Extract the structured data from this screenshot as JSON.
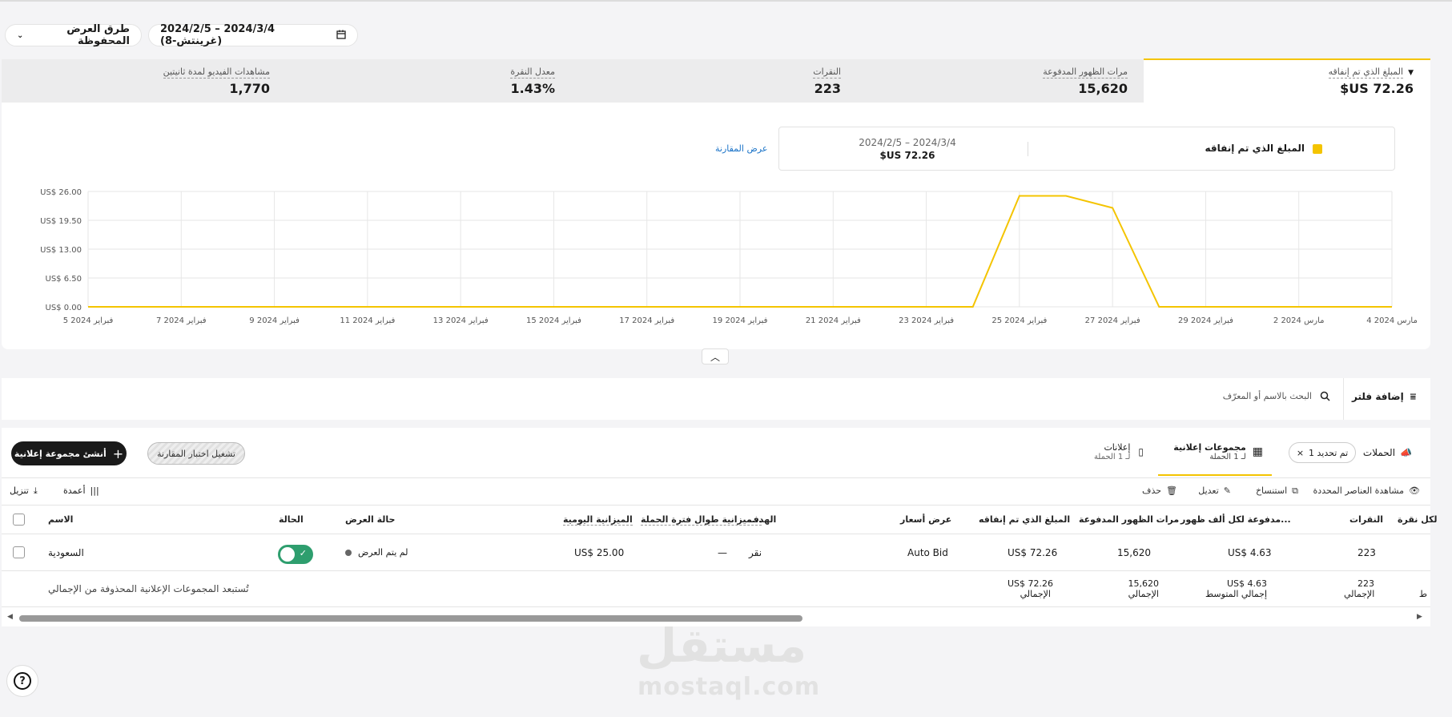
{
  "toolbar": {
    "saved_views_label": "طرق العرض المحفوظة",
    "date_range_label": "2024/2/5 – 2024/3/4 (غرينتش-8)"
  },
  "kpis": [
    {
      "label": "المبلغ الذي تم إنفاقه",
      "value": "72.26 US$"
    },
    {
      "label": "مرات الظهور المدفوعة",
      "value": "15,620"
    },
    {
      "label": "النقرات",
      "value": "223"
    },
    {
      "label": "معدل النقرة",
      "value": "1.43%"
    },
    {
      "label": "مشاهدات الفيديو لمدة ثانيتين",
      "value": "1,770"
    }
  ],
  "legend": {
    "metric": "المبلغ الذي تم إنفاقه",
    "range": "2024/2/5 – 2024/3/4",
    "total": "72.26 US$",
    "compare_link": "عرض المقارنة",
    "color": "#f4c400"
  },
  "chart_data": {
    "type": "line",
    "x": [
      "5 فبراير 2024",
      "6",
      "7 فبراير 2024",
      "8",
      "9 فبراير 2024",
      "10",
      "11 فبراير 2024",
      "12",
      "13 فبراير 2024",
      "14",
      "15 فبراير 2024",
      "16",
      "17 فبراير 2024",
      "18",
      "19 فبراير 2024",
      "20",
      "21 فبراير 2024",
      "22",
      "23 فبراير 2024",
      "24",
      "25 فبراير 2024",
      "26",
      "27 فبراير 2024",
      "28",
      "29 فبراير 2024",
      "1",
      "2 مارس 2024",
      "3",
      "4 مارس 2024"
    ],
    "tick_labels": [
      "5 فبراير 2024",
      "7 فبراير 2024",
      "9 فبراير 2024",
      "11 فبراير 2024",
      "13 فبراير 2024",
      "15 فبراير 2024",
      "17 فبراير 2024",
      "19 فبراير 2024",
      "21 فبراير 2024",
      "23 فبراير 2024",
      "25 فبراير 2024",
      "27 فبراير 2024",
      "29 فبراير 2024",
      "2 مارس 2024",
      "4 مارس 2024"
    ],
    "y_tick_labels": [
      "US$ 0.00",
      "US$ 6.50",
      "US$ 13.00",
      "US$ 19.50",
      "US$ 26.00"
    ],
    "series": [
      {
        "values": [
          0,
          0,
          0,
          0,
          0,
          0,
          0,
          0,
          0,
          0,
          0,
          0,
          0,
          0,
          0,
          0,
          0,
          0,
          0,
          0,
          25,
          25,
          22.3,
          0,
          0,
          0,
          0,
          0,
          0
        ]
      }
    ],
    "ylim": [
      0,
      26
    ],
    "grid": true
  },
  "filter": {
    "add_filter": "إضافة فلتر",
    "search_placeholder": "البحث بالاسم أو المعرّف"
  },
  "tabs": {
    "campaigns": "الحملات",
    "selected_chip": "تم تحديد 1",
    "ad_groups": "مجموعات إعلانية",
    "ad_groups_sub": "لـ 1 الحملة",
    "ads": "إعلانات",
    "ads_sub": "لـ 1 الحملة",
    "compare_test": "تشغيل اختبار المقارنة",
    "create_group": "أنشئ مجموعة إعلانية"
  },
  "actions": {
    "view_selected": "مشاهدة العناصر المحددة",
    "duplicate": "استنساخ",
    "edit": "تعديل",
    "delete": "حذف",
    "columns": "أعمدة",
    "download": "تنزيل"
  },
  "table": {
    "headers": {
      "name": "الاسم",
      "status": "الحالة",
      "delivery": "حالة العرض",
      "daily_budget": "الميزانية اليومية",
      "lifetime_budget": "...ميزانية طوال فترة الحملة",
      "goal": "الهدف",
      "bid": "عرض أسعار",
      "spend": "المبلغ الذي تم إنفاقه",
      "impressions": "مرات الظهور المدفوعة",
      "cpm": "...مدفوعة لكل ألف ظهور",
      "clicks": "النقرات",
      "cpc": "لكل نقرة"
    },
    "row": {
      "name": "السعودية",
      "delivery": "لم يتم العرض",
      "daily_budget": "US$ 25.00",
      "lifetime_budget": "—",
      "goal": "نقر",
      "bid": "Auto Bid",
      "spend": "US$ 72.26",
      "impressions": "15,620",
      "cpm": "US$ 4.63",
      "clicks": "223"
    },
    "footer": {
      "note": "تُستبعد المجموعات الإعلانية المحذوفة من الإجمالي",
      "spend": "US$ 72.26",
      "spend_sub": "الإجمالي",
      "impressions": "15,620",
      "impressions_sub": "الإجمالي",
      "cpm": "US$ 4.63",
      "cpm_sub": "إجمالي المتوسط",
      "clicks": "223",
      "clicks_sub": "الإجمالي",
      "cpc_sub": "ط"
    }
  },
  "watermark": {
    "arabic": "مستقل",
    "latin": "mostaql.com"
  }
}
